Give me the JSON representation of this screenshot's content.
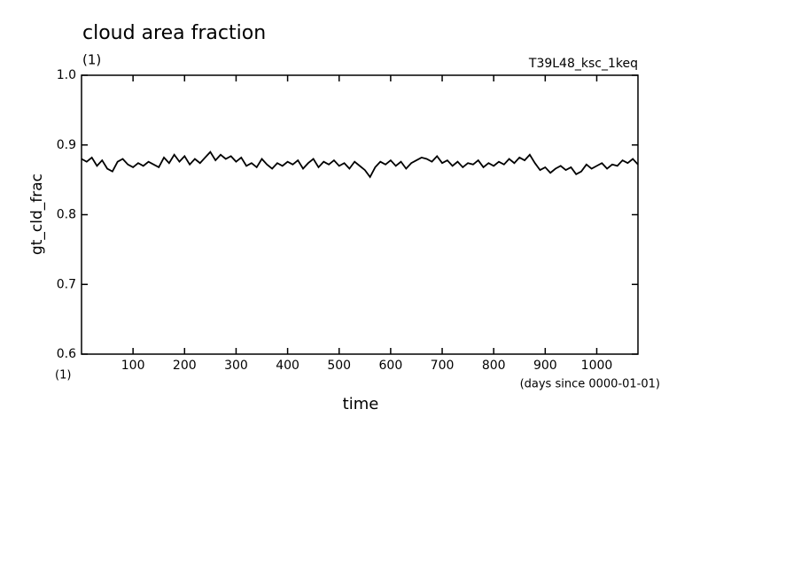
{
  "chart_data": {
    "type": "line",
    "title": "cloud area fraction",
    "unit_label": "(1)",
    "subtitle": "T39L48_ksc_1keq",
    "y_label": "gt_cld_frac",
    "x_label": "time",
    "x_unit_label": "(1)",
    "x_units": "(days since 0000-01-01)",
    "xlim": [
      0,
      1080
    ],
    "xticks": [
      100,
      200,
      300,
      400,
      500,
      600,
      700,
      800,
      900,
      1000
    ],
    "ylim": [
      0.6,
      1.0
    ],
    "yticks": [
      0.6,
      0.7,
      0.8,
      0.9,
      {
        "value": 1.0,
        "label": "1.0"
      }
    ],
    "x": [
      0,
      10,
      20,
      30,
      40,
      50,
      60,
      70,
      80,
      90,
      100,
      110,
      120,
      130,
      140,
      150,
      160,
      170,
      180,
      190,
      200,
      210,
      220,
      230,
      240,
      250,
      260,
      270,
      280,
      290,
      300,
      310,
      320,
      330,
      340,
      350,
      360,
      370,
      380,
      390,
      400,
      410,
      420,
      430,
      440,
      450,
      460,
      470,
      480,
      490,
      500,
      510,
      520,
      530,
      540,
      550,
      560,
      570,
      580,
      590,
      600,
      610,
      620,
      630,
      640,
      650,
      660,
      670,
      680,
      690,
      700,
      710,
      720,
      730,
      740,
      750,
      760,
      770,
      780,
      790,
      800,
      810,
      820,
      830,
      840,
      850,
      860,
      870,
      880,
      890,
      900,
      910,
      920,
      930,
      940,
      950,
      960,
      970,
      980,
      990,
      1000,
      1010,
      1020,
      1030,
      1040,
      1050,
      1060,
      1070,
      1080
    ],
    "series": [
      {
        "color": "#000000",
        "values": [
          0.88,
          0.876,
          0.882,
          0.87,
          0.878,
          0.866,
          0.862,
          0.876,
          0.88,
          0.872,
          0.868,
          0.874,
          0.87,
          0.876,
          0.872,
          0.868,
          0.882,
          0.874,
          0.886,
          0.876,
          0.884,
          0.872,
          0.88,
          0.874,
          0.882,
          0.89,
          0.878,
          0.886,
          0.88,
          0.884,
          0.876,
          0.882,
          0.87,
          0.874,
          0.868,
          0.88,
          0.872,
          0.866,
          0.874,
          0.87,
          0.876,
          0.872,
          0.878,
          0.866,
          0.874,
          0.88,
          0.868,
          0.876,
          0.872,
          0.878,
          0.87,
          0.874,
          0.866,
          0.876,
          0.87,
          0.864,
          0.854,
          0.868,
          0.876,
          0.872,
          0.878,
          0.87,
          0.876,
          0.866,
          0.874,
          0.878,
          0.882,
          0.88,
          0.876,
          0.884,
          0.874,
          0.878,
          0.87,
          0.876,
          0.868,
          0.874,
          0.872,
          0.878,
          0.868,
          0.874,
          0.87,
          0.876,
          0.872,
          0.88,
          0.874,
          0.882,
          0.878,
          0.886,
          0.874,
          0.864,
          0.868,
          0.86,
          0.866,
          0.87,
          0.864,
          0.868,
          0.858,
          0.862,
          0.872,
          0.866,
          0.87,
          0.874,
          0.866,
          0.872,
          0.87,
          0.878,
          0.874,
          0.88,
          0.872
        ]
      }
    ]
  }
}
